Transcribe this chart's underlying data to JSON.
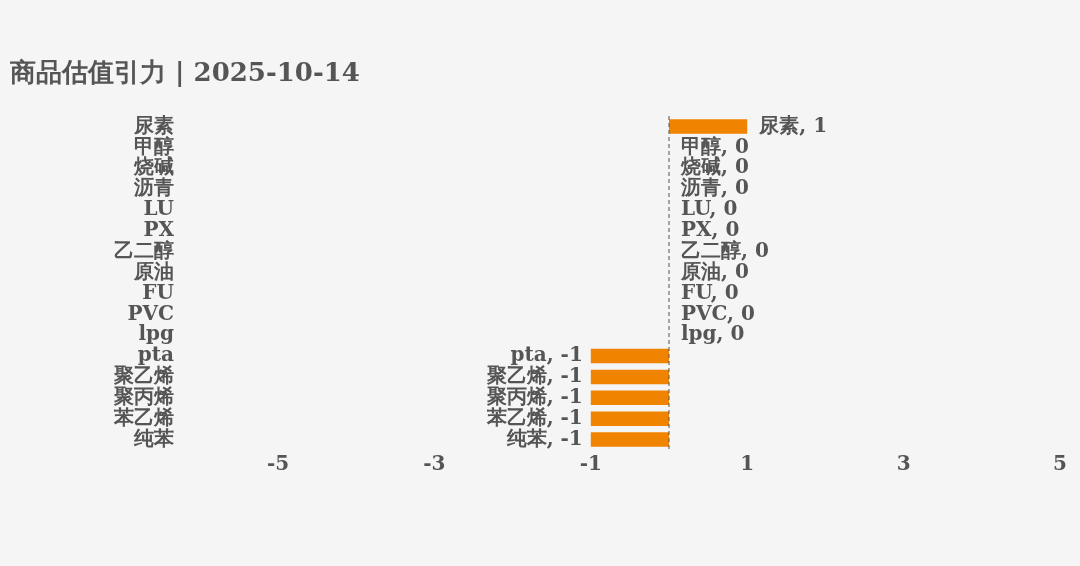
{
  "chart_data": {
    "type": "bar",
    "orientation": "horizontal",
    "title": "商品估值引力 | 2025-10-14",
    "categories": [
      "尿素",
      "甲醇",
      "烧碱",
      "沥青",
      "LU",
      "PX",
      "乙二醇",
      "原油",
      "FU",
      "PVC",
      "lpg",
      "pta",
      "聚乙烯",
      "聚丙烯",
      "苯乙烯",
      "纯苯"
    ],
    "values": [
      1,
      0,
      0,
      0,
      0,
      0,
      0,
      0,
      0,
      0,
      0,
      -1,
      -1,
      -1,
      -1,
      -1
    ],
    "value_labels": [
      "尿素, 1",
      "甲醇, 0",
      "烧碱, 0",
      "沥青, 0",
      "LU, 0",
      "PX, 0",
      "乙二醇, 0",
      "原油, 0",
      "FU, 0",
      "PVC, 0",
      "lpg, 0",
      "pta, -1",
      "聚乙烯, -1",
      "聚丙烯, -1",
      "苯乙烯, -1",
      "纯苯, -1"
    ],
    "color": "#f08300",
    "xlim": [
      -5,
      5
    ],
    "xticks": [
      -5,
      -3,
      -1,
      1,
      3,
      5
    ],
    "grid": false,
    "legend": false,
    "ref_lines": [
      {
        "axis": "x",
        "value": 0,
        "color": "#555555",
        "line_style": "dashed"
      }
    ]
  }
}
